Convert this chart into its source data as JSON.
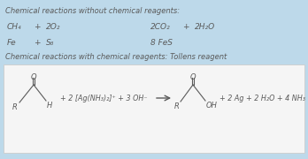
{
  "bg_color": "#bdd9ea",
  "white_box_color": "#f5f5f5",
  "text_color": "#5a5a5a",
  "title1": "Chemical reactions without chemical reagents:",
  "title2": "Chemical reactions with chemical reagents: Tollens reagent",
  "reagent_text": "+ 2 [Ag(NH₃)₂]⁺ + 3 OH⁻",
  "product_text": "+ 2 Ag + 2 H₂O + 4 NH₃",
  "title_fontsize": 6.0,
  "eq_fontsize": 6.5,
  "reagent_fontsize": 5.8,
  "struct_fontsize": 6.0
}
